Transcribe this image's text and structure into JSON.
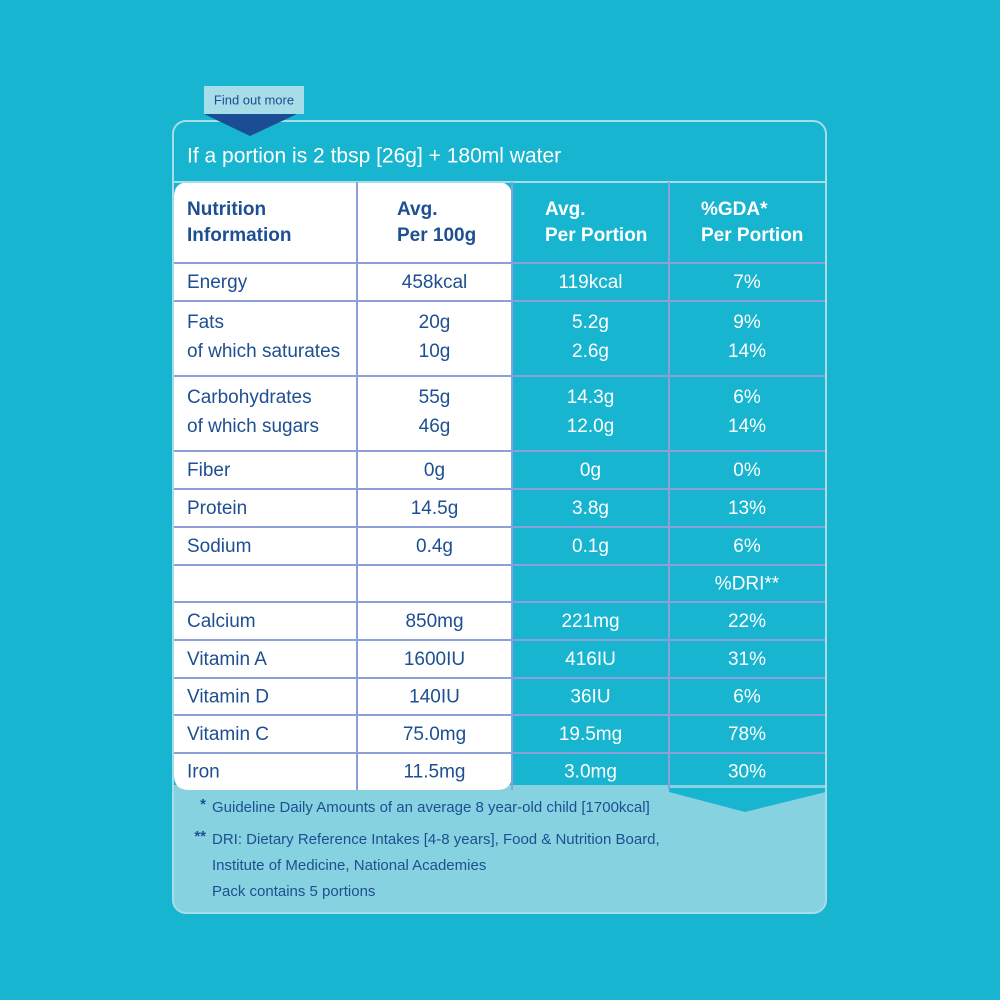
{
  "tab": {
    "label": "Find out more"
  },
  "title": "If a portion is 2 tbsp [26g] + 180ml water",
  "table": {
    "header": [
      [
        "Nutrition",
        "Information"
      ],
      [
        "Avg.",
        "Per 100g"
      ],
      [
        "Avg.",
        "Per Portion"
      ],
      [
        "%GDA*",
        "Per Portion"
      ]
    ],
    "rows": [
      [
        [
          "Energy"
        ],
        [
          "458kcal"
        ],
        [
          "119kcal"
        ],
        [
          "7%"
        ]
      ],
      [
        [
          "Fats",
          "of which saturates"
        ],
        [
          "20g",
          "10g"
        ],
        [
          "5.2g",
          "2.6g"
        ],
        [
          "9%",
          "14%"
        ]
      ],
      [
        [
          "Carbohydrates",
          "of which sugars"
        ],
        [
          "55g",
          "46g"
        ],
        [
          "14.3g",
          "12.0g"
        ],
        [
          "6%",
          "14%"
        ]
      ],
      [
        [
          "Fiber"
        ],
        [
          "0g"
        ],
        [
          "0g"
        ],
        [
          "0%"
        ]
      ],
      [
        [
          "Protein"
        ],
        [
          "14.5g"
        ],
        [
          "3.8g"
        ],
        [
          "13%"
        ]
      ],
      [
        [
          "Sodium"
        ],
        [
          "0.4g"
        ],
        [
          "0.1g"
        ],
        [
          "6%"
        ]
      ],
      [
        [],
        [],
        [],
        [
          "%DRI**"
        ]
      ],
      [
        [
          "Calcium"
        ],
        [
          "850mg"
        ],
        [
          "221mg"
        ],
        [
          "22%"
        ]
      ],
      [
        [
          "Vitamin A"
        ],
        [
          "1600IU"
        ],
        [
          "416IU"
        ],
        [
          "31%"
        ]
      ],
      [
        [
          "Vitamin D"
        ],
        [
          "140IU"
        ],
        [
          "36IU"
        ],
        [
          "6%"
        ]
      ],
      [
        [
          "Vitamin C"
        ],
        [
          "75.0mg"
        ],
        [
          "19.5mg"
        ],
        [
          "78%"
        ]
      ],
      [
        [
          "Iron"
        ],
        [
          "11.5mg"
        ],
        [
          "3.0mg"
        ],
        [
          "30%"
        ]
      ]
    ]
  },
  "footnotes": [
    {
      "mark": "*",
      "lines": [
        "Guideline Daily Amounts of an average 8 year-old child [1700kcal]"
      ]
    },
    {
      "mark": "**",
      "lines": [
        "DRI: Dietary Reference Intakes [4-8 years], Food & Nutrition Board,",
        "Institute of Medicine, National Academies",
        "Pack contains 5 portions"
      ]
    }
  ]
}
